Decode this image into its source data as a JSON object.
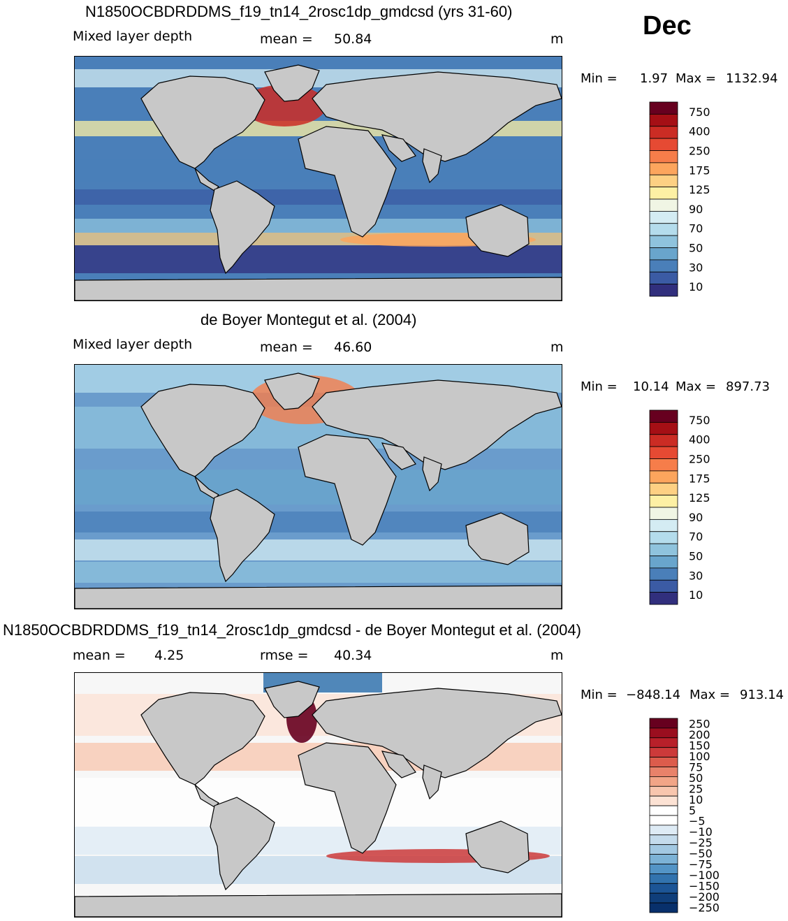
{
  "month": "Dec",
  "chart_data": [
    {
      "type": "heatmap",
      "title": "N1850OCBDRDDMS_f19_tn14_2rosc1dp_gmdcsd (yrs 31-60)",
      "left_label": "Mixed layer depth",
      "mean_label": "mean =",
      "mean_value": "50.84",
      "units": "m",
      "min_label": "Min =",
      "min_value": "1.97",
      "max_label": "Max =",
      "max_value": "1132.94",
      "colorbar_levels": [
        "750",
        "400",
        "250",
        "175",
        "125",
        "90",
        "70",
        "50",
        "30",
        "10"
      ],
      "colorbar_colors": [
        "#67001f",
        "#a50f15",
        "#cb2c24",
        "#e64a33",
        "#f67d4a",
        "#fca55d",
        "#fdd083",
        "#fdf0a4",
        "#f0f5e4",
        "#d4ecf3",
        "#b4dcec",
        "#8fc3dd",
        "#69a5cc",
        "#4a7fb9",
        "#3b5ba4",
        "#312f7d"
      ],
      "ocean_color": "#4a7fb9"
    },
    {
      "type": "heatmap",
      "title": "de Boyer Montegut et al. (2004)",
      "left_label": "Mixed layer depth",
      "mean_label": "mean =",
      "mean_value": "46.60",
      "units": "m",
      "min_label": "Min =",
      "min_value": "10.14",
      "max_label": "Max =",
      "max_value": "897.73",
      "colorbar_levels": [
        "750",
        "400",
        "250",
        "175",
        "125",
        "90",
        "70",
        "50",
        "30",
        "10"
      ],
      "colorbar_colors": [
        "#67001f",
        "#a50f15",
        "#cb2c24",
        "#e64a33",
        "#f67d4a",
        "#fca55d",
        "#fdd083",
        "#fdf0a4",
        "#f0f5e4",
        "#d4ecf3",
        "#b4dcec",
        "#8fc3dd",
        "#69a5cc",
        "#4a7fb9",
        "#3b5ba4",
        "#312f7d"
      ],
      "ocean_color": "#6a9ccc"
    },
    {
      "type": "heatmap",
      "title": "N1850OCBDRDDMS_f19_tn14_2rosc1dp_gmdcsd - de Boyer Montegut et al. (2004)",
      "mean_label": "mean =",
      "mean_value": "4.25",
      "rmse_label": "rmse =",
      "rmse_value": "40.34",
      "units": "m",
      "min_label": "Min =",
      "min_value": "−848.14",
      "max_label": "Max =",
      "max_value": "913.14",
      "colorbar_levels": [
        "250",
        "200",
        "150",
        "100",
        "75",
        "50",
        "25",
        "10",
        "5",
        "−5",
        "−10",
        "−25",
        "−50",
        "−75",
        "−100",
        "−150",
        "−200",
        "−250"
      ],
      "colorbar_colors": [
        "#67001f",
        "#9a0e1f",
        "#b8202a",
        "#cc3a3a",
        "#dc5c4c",
        "#e8826a",
        "#f2a587",
        "#f8c6ae",
        "#fce2d4",
        "#ffffff",
        "#ffffff",
        "#deebf5",
        "#c4dbec",
        "#a2c8e2",
        "#7cb2d6",
        "#5394c6",
        "#3273ae",
        "#1c5596",
        "#0f3e7a",
        "#08306b"
      ],
      "ocean_color": "#f7f7f7"
    }
  ]
}
